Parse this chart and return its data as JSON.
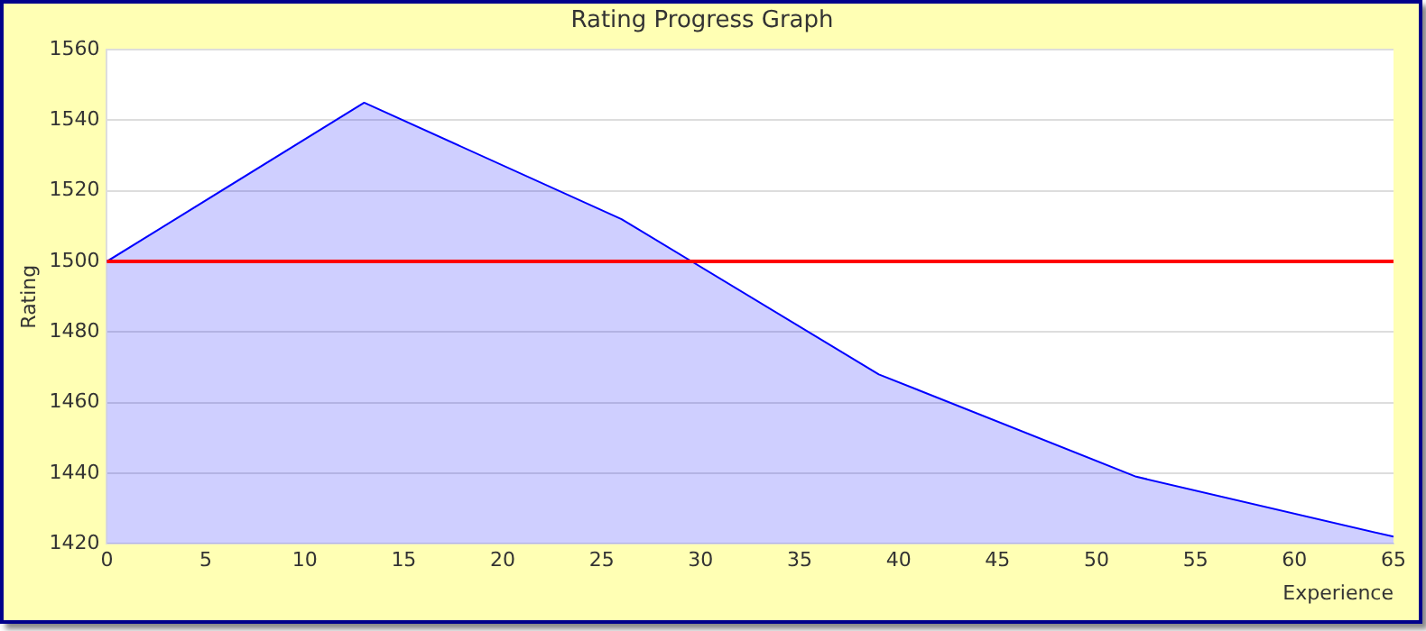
{
  "chart_data": {
    "type": "area",
    "title": "Rating Progress Graph",
    "xlabel": "Experience",
    "ylabel": "Rating",
    "x": [
      0,
      13,
      26,
      39,
      52,
      65
    ],
    "series": [
      {
        "color": "#0000ff",
        "values": [
          1500,
          1545,
          1512,
          1468,
          1439,
          1422
        ]
      }
    ],
    "xlim": [
      0,
      65
    ],
    "xticks": [
      0,
      5,
      10,
      15,
      20,
      25,
      30,
      35,
      40,
      45,
      50,
      55,
      60,
      65
    ],
    "ylim": [
      1420,
      1560
    ],
    "yticks": [
      1420,
      1440,
      1460,
      1480,
      1500,
      1520,
      1540,
      1560
    ],
    "ref_lines": [
      {
        "axis": "y",
        "value": 1500,
        "color": "#ff0000"
      }
    ],
    "grid": "y",
    "legend": false,
    "marker": "none"
  }
}
